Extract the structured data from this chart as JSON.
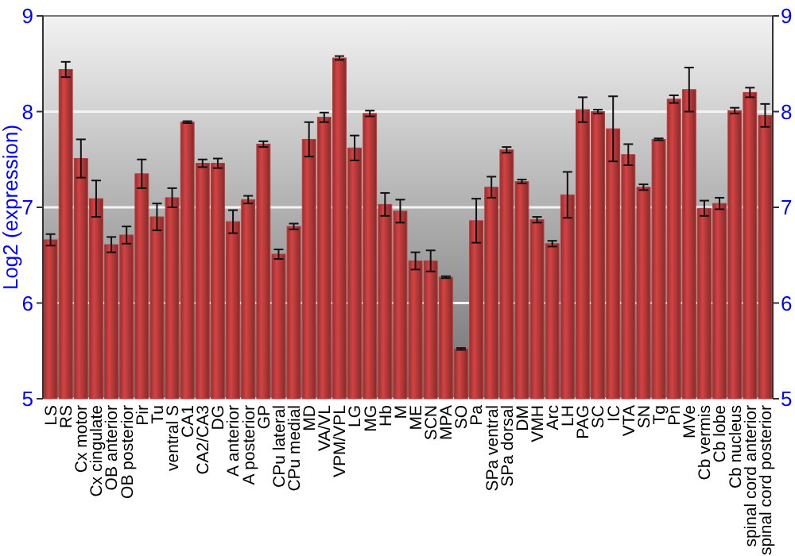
{
  "chart_data": {
    "type": "bar",
    "ylabel": "Log2 (expression)",
    "categories": [
      "LS",
      "RS",
      "Cx motor",
      "Cx cingulate",
      "OB anterior",
      "OB posterior",
      "Pir",
      "Tu",
      "ventral S",
      "CA1",
      "CA2/CA3",
      "DG",
      "A anterior",
      "A posterior",
      "GP",
      "CPu lateral",
      "CPu medial",
      "MD",
      "VA/VL",
      "VPM/VPL",
      "LG",
      "MG",
      "Hb",
      "M",
      "ME",
      "SCN",
      "MPA",
      "SO",
      "Pa",
      "SPa ventral",
      "SPa dorsal",
      "DM",
      "VMH",
      "Arc",
      "LH",
      "PAG",
      "SC",
      "IC",
      "VTA",
      "SN",
      "Tg",
      "Pn",
      "MVe",
      "Cb vermis",
      "Cb lobe",
      "Cb nucleus",
      "spinal cord anterior",
      "spinal cord posterior"
    ],
    "values": [
      6.66,
      8.44,
      7.51,
      7.09,
      6.61,
      6.71,
      7.35,
      6.9,
      7.1,
      7.89,
      7.46,
      7.46,
      6.85,
      7.08,
      7.66,
      6.51,
      6.8,
      7.71,
      7.94,
      8.56,
      7.62,
      7.98,
      7.03,
      6.96,
      6.44,
      6.44,
      6.27,
      5.52,
      6.86,
      7.21,
      7.6,
      7.27,
      6.87,
      6.62,
      7.13,
      8.02,
      8.0,
      7.82,
      7.55,
      7.21,
      7.71,
      8.13,
      8.23,
      6.99,
      7.04,
      8.01,
      8.2,
      7.96
    ],
    "errors": [
      0.06,
      0.08,
      0.2,
      0.19,
      0.08,
      0.09,
      0.15,
      0.14,
      0.1,
      0.01,
      0.04,
      0.05,
      0.12,
      0.04,
      0.03,
      0.05,
      0.03,
      0.18,
      0.05,
      0.02,
      0.13,
      0.03,
      0.12,
      0.12,
      0.09,
      0.11,
      0.01,
      0.01,
      0.23,
      0.11,
      0.03,
      0.02,
      0.03,
      0.03,
      0.24,
      0.13,
      0.02,
      0.34,
      0.11,
      0.03,
      0.01,
      0.04,
      0.23,
      0.08,
      0.06,
      0.03,
      0.05,
      0.12
    ],
    "color": "#b83a3a",
    "ylim": [
      5,
      9
    ],
    "yticks": [
      5,
      6,
      7,
      8,
      9
    ],
    "y2lim": [
      5,
      9
    ],
    "y2ticks": [
      5,
      6,
      7,
      8,
      9
    ],
    "grid": "y"
  }
}
